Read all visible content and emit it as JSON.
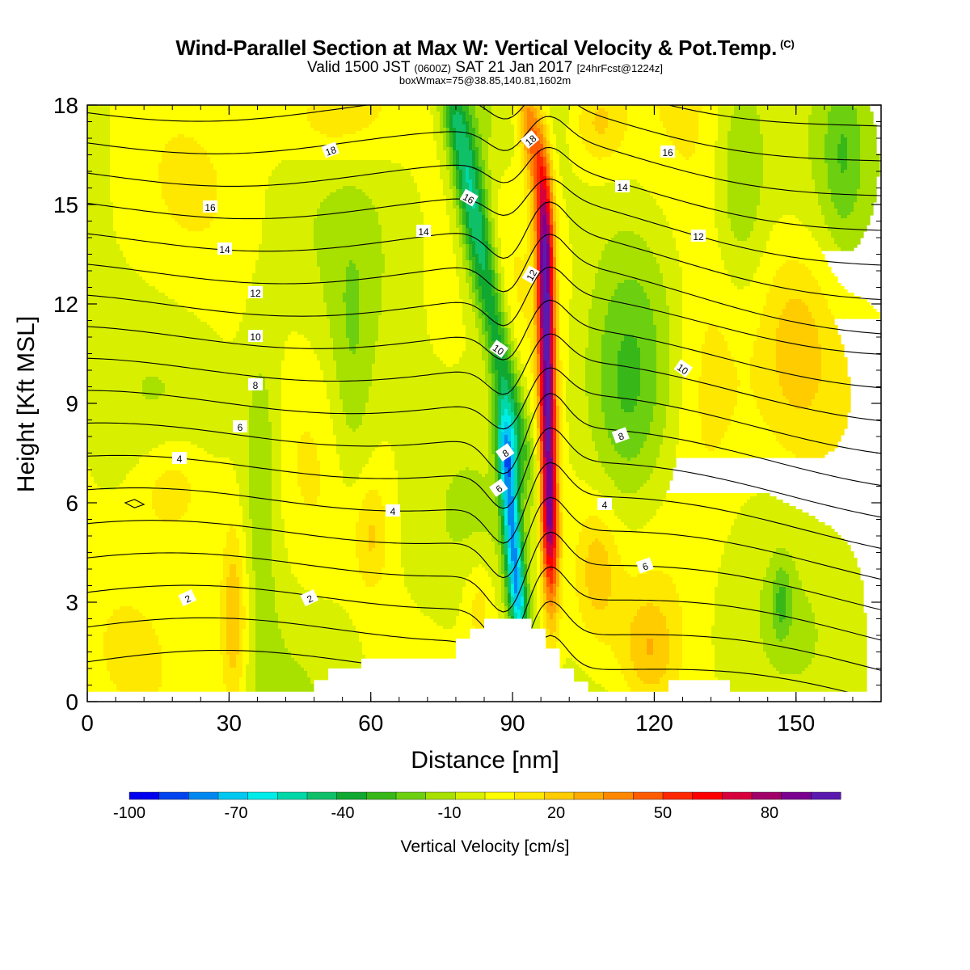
{
  "header": {
    "title": "Wind-Parallel Section at Max W: Vertical Velocity & Pot.Temp.",
    "copyright_mark": "(C)",
    "subtitle_part1": "Valid 1500 JST",
    "subtitle_zulu": "(0600Z)",
    "subtitle_part2": "SAT 21 Jan 2017",
    "subtitle_fcst": "[24hrFcst@1224z]",
    "subtitle2": "boxWmax=75@38.85,140.81,1602m"
  },
  "chart_data": {
    "type": "heatmap",
    "xlabel": "Distance [nm]",
    "ylabel": "Height [Kft MSL]",
    "xlim": [
      0,
      168
    ],
    "ylim": [
      0,
      18
    ],
    "x_ticks": [
      "0",
      "30",
      "60",
      "90",
      "120",
      "150"
    ],
    "x_tick_values": [
      0,
      30,
      60,
      90,
      120,
      150
    ],
    "y_ticks": [
      "0",
      "3",
      "6",
      "9",
      "12",
      "15",
      "18"
    ],
    "y_tick_values": [
      0,
      3,
      6,
      9,
      12,
      15,
      18
    ],
    "terrain_profile_kft": [
      [
        0,
        0.3
      ],
      [
        48,
        0.3
      ],
      [
        48,
        0.65
      ],
      [
        51,
        0.65
      ],
      [
        51,
        1.0
      ],
      [
        58,
        1.0
      ],
      [
        58,
        1.3
      ],
      [
        78,
        1.3
      ],
      [
        78,
        1.9
      ],
      [
        81,
        1.9
      ],
      [
        81,
        2.2
      ],
      [
        84,
        2.2
      ],
      [
        84,
        2.5
      ],
      [
        94,
        2.5
      ],
      [
        94,
        2.2
      ],
      [
        97,
        2.2
      ],
      [
        97,
        1.6
      ],
      [
        100,
        1.6
      ],
      [
        100,
        1.0
      ],
      [
        103,
        1.0
      ],
      [
        103,
        0.6
      ],
      [
        106,
        0.6
      ],
      [
        106,
        0.3
      ],
      [
        123,
        0.3
      ],
      [
        123,
        0.65
      ],
      [
        136,
        0.65
      ],
      [
        136,
        0.3
      ],
      [
        168,
        0.3
      ]
    ],
    "vertical_velocity_features_cm_s": [
      {
        "kind": "updraft",
        "x_center": 97,
        "z_range": [
          4,
          17.5
        ],
        "peak": 90
      },
      {
        "kind": "updraft",
        "x_center": 93,
        "z_range": [
          16,
          18
        ],
        "peak": 40
      },
      {
        "kind": "downdraft",
        "x_center": 90,
        "z_range": [
          2.5,
          8
        ],
        "peak": -70
      },
      {
        "kind": "downdraft",
        "x_center": 84,
        "z_range": [
          8,
          18
        ],
        "peak": -40
      },
      {
        "kind": "downdraft",
        "x_center": 115,
        "z_range": [
          6,
          12
        ],
        "peak": -20
      },
      {
        "kind": "downdraft",
        "x_center": 37,
        "z_range": [
          4,
          10
        ],
        "peak": -20
      },
      {
        "kind": "downdraft",
        "x_center": 55,
        "z_range": [
          6,
          13
        ],
        "peak": -15
      },
      {
        "kind": "downdraft",
        "x_center": 140,
        "z_range": [
          12,
          18
        ],
        "peak": -20
      },
      {
        "kind": "updraft",
        "x_center": 31,
        "z_range": [
          1,
          5
        ],
        "peak": 25
      },
      {
        "kind": "updraft",
        "x_center": 60,
        "z_range": [
          4,
          6
        ],
        "peak": 15
      }
    ],
    "potential_temperature_contour_labels": [
      "2",
      "2",
      "4",
      "4",
      "4",
      "6",
      "6",
      "6",
      "8",
      "8",
      "8",
      "10",
      "10",
      "10",
      "12",
      "12",
      "12",
      "14",
      "14",
      "14",
      "16",
      "16",
      "16",
      "18",
      "18"
    ],
    "colorbar": {
      "label": "Vertical Velocity [cm/s]",
      "tick_labels": [
        "-100",
        "-70",
        "-40",
        "-10",
        "20",
        "50",
        "80"
      ],
      "tick_values": [
        -100,
        -70,
        -40,
        -10,
        20,
        50,
        80
      ],
      "range": [
        -100,
        100
      ],
      "colors": [
        "#0000ee",
        "#0044f0",
        "#0088f0",
        "#00c8f0",
        "#00ece8",
        "#00d8a8",
        "#10c068",
        "#10a830",
        "#38b818",
        "#6cd010",
        "#a8e000",
        "#d8f000",
        "#ffff00",
        "#ffe800",
        "#ffcc00",
        "#ffaa00",
        "#ff8800",
        "#ff5c00",
        "#ff2800",
        "#ff0000",
        "#d8003c",
        "#a00068",
        "#7a0090",
        "#5a1ab0"
      ]
    }
  }
}
